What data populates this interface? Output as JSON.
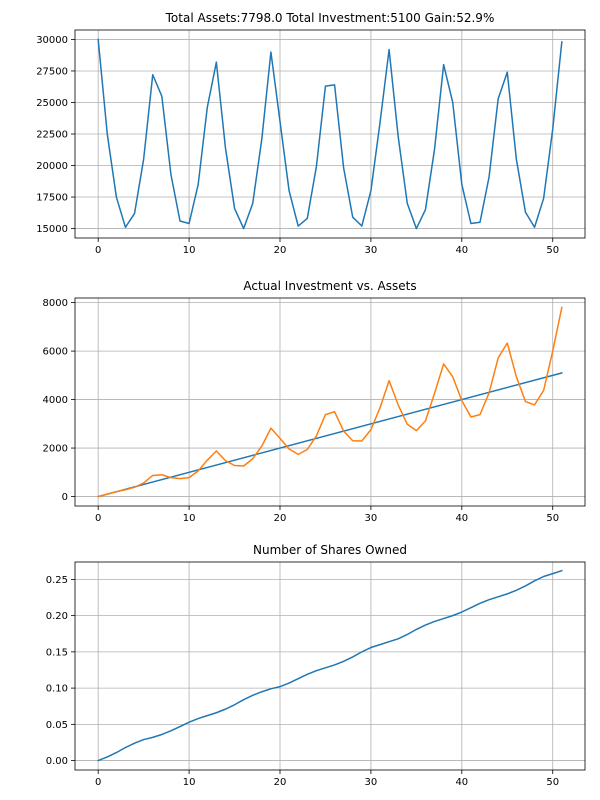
{
  "colors": {
    "series_blue": "#1f77b4",
    "series_orange": "#ff7f0e",
    "grid": "#b0b0b0"
  },
  "chart_data": [
    {
      "type": "line",
      "title": "Total Assets:7798.0  Total Investment:5100  Gain:52.9%",
      "xlabel": "",
      "ylabel": "",
      "xlim": [
        -2.55,
        53.55
      ],
      "ylim": [
        14250,
        30750
      ],
      "grid": true,
      "xticks": [
        0,
        10,
        20,
        30,
        40,
        50
      ],
      "xtick_labels": [
        "0",
        "10",
        "20",
        "30",
        "40",
        "50"
      ],
      "yticks": [
        15000,
        17500,
        20000,
        22500,
        25000,
        27500,
        30000
      ],
      "ytick_labels": [
        "15000",
        "17500",
        "20000",
        "22500",
        "25000",
        "27500",
        "30000"
      ],
      "series": [
        {
          "color": "#1f77b4",
          "x": [
            0,
            1,
            2,
            3,
            4,
            5,
            6,
            7,
            8,
            9,
            10,
            11,
            12,
            13,
            14,
            15,
            16,
            17,
            18,
            19,
            20,
            21,
            22,
            23,
            24,
            25,
            26,
            27,
            28,
            29,
            30,
            31,
            32,
            33,
            34,
            35,
            36,
            37,
            38,
            39,
            40,
            41,
            42,
            43,
            44,
            45,
            46,
            47,
            48,
            49,
            50,
            51
          ],
          "values": [
            30000,
            22500,
            17500,
            15100,
            16200,
            20500,
            27200,
            25500,
            19300,
            15600,
            15400,
            18500,
            24600,
            28200,
            21400,
            16600,
            15000,
            17000,
            22100,
            29000,
            23500,
            18000,
            15200,
            15800,
            19900,
            26300,
            26400,
            19800,
            15900,
            15200,
            18000,
            23400,
            29200,
            22300,
            17000,
            15000,
            16500,
            21300,
            28000,
            25000,
            18500,
            15400,
            15500,
            19100,
            25300,
            27400,
            20500,
            16300,
            15100,
            17400,
            22900,
            29800
          ]
        }
      ]
    },
    {
      "type": "line",
      "title": "Actual Investment vs. Assets",
      "xlabel": "",
      "ylabel": "",
      "xlim": [
        -2.55,
        53.55
      ],
      "ylim": [
        -390,
        8190
      ],
      "grid": true,
      "xticks": [
        0,
        10,
        20,
        30,
        40,
        50
      ],
      "xtick_labels": [
        "0",
        "10",
        "20",
        "30",
        "40",
        "50"
      ],
      "yticks": [
        0,
        2000,
        4000,
        6000,
        8000
      ],
      "ytick_labels": [
        "0",
        "2000",
        "4000",
        "6000",
        "8000"
      ],
      "series": [
        {
          "color": "#1f77b4",
          "x": [
            0,
            51
          ],
          "values": [
            0,
            5100
          ]
        },
        {
          "color": "#ff7f0e",
          "x": [
            0,
            1,
            2,
            3,
            4,
            5,
            6,
            7,
            8,
            9,
            10,
            11,
            12,
            13,
            14,
            15,
            16,
            17,
            18,
            19,
            20,
            21,
            22,
            23,
            24,
            25,
            26,
            27,
            28,
            29,
            30,
            31,
            32,
            33,
            34,
            35,
            36,
            37,
            38,
            39,
            40,
            41,
            42,
            43,
            44,
            45,
            46,
            47,
            48,
            49,
            50,
            51
          ],
          "values": [
            0,
            100,
            200,
            280,
            380,
            560,
            870,
            900,
            780,
            740,
            780,
            1060,
            1500,
            1880,
            1480,
            1280,
            1260,
            1560,
            2080,
            2820,
            2400,
            1960,
            1740,
            1940,
            2500,
            3380,
            3500,
            2700,
            2300,
            2290,
            2760,
            3660,
            4780,
            3780,
            2980,
            2720,
            3120,
            4260,
            5470,
            4940,
            3960,
            3280,
            3380,
            4280,
            5720,
            6330,
            4940,
            3920,
            3780,
            4380,
            6000,
            7800
          ]
        }
      ]
    },
    {
      "type": "line",
      "title": "Number of Shares Owned",
      "xlabel": "",
      "ylabel": "",
      "xlim": [
        -2.55,
        53.55
      ],
      "ylim": [
        -0.013,
        0.274
      ],
      "grid": true,
      "xticks": [
        0,
        10,
        20,
        30,
        40,
        50
      ],
      "xtick_labels": [
        "0",
        "10",
        "20",
        "30",
        "40",
        "50"
      ],
      "yticks": [
        0,
        0.05,
        0.1,
        0.15,
        0.2,
        0.25
      ],
      "ytick_labels": [
        "0.00",
        "0.05",
        "0.10",
        "0.15",
        "0.20",
        "0.25"
      ],
      "series": [
        {
          "color": "#1f77b4",
          "x": [
            0,
            1,
            2,
            3,
            4,
            5,
            6,
            7,
            8,
            9,
            10,
            11,
            12,
            13,
            14,
            15,
            16,
            17,
            18,
            19,
            20,
            21,
            22,
            23,
            24,
            25,
            26,
            27,
            28,
            29,
            30,
            31,
            32,
            33,
            34,
            35,
            36,
            37,
            38,
            39,
            40,
            41,
            42,
            43,
            44,
            45,
            46,
            47,
            48,
            49,
            50,
            51
          ],
          "values": [
            0,
            0.005,
            0.011,
            0.018,
            0.024,
            0.029,
            0.032,
            0.036,
            0.041,
            0.047,
            0.053,
            0.058,
            0.062,
            0.066,
            0.071,
            0.077,
            0.084,
            0.09,
            0.095,
            0.099,
            0.102,
            0.107,
            0.113,
            0.119,
            0.124,
            0.128,
            0.132,
            0.137,
            0.143,
            0.15,
            0.156,
            0.16,
            0.164,
            0.168,
            0.174,
            0.181,
            0.187,
            0.192,
            0.196,
            0.2,
            0.205,
            0.211,
            0.217,
            0.222,
            0.226,
            0.23,
            0.235,
            0.241,
            0.248,
            0.254,
            0.258,
            0.262
          ]
        }
      ]
    }
  ]
}
